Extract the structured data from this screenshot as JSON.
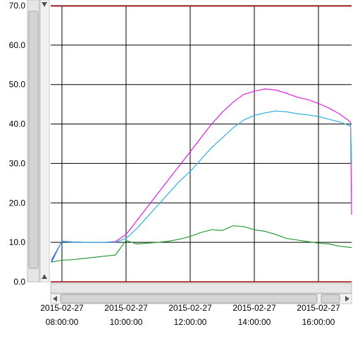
{
  "chart_data": {
    "type": "line",
    "x": [
      "2015-02-27 07:40:00",
      "2015-02-27 08:00:00",
      "2015-02-27 08:20:00",
      "2015-02-27 08:40:00",
      "2015-02-27 09:00:00",
      "2015-02-27 09:20:00",
      "2015-02-27 09:40:00",
      "2015-02-27 10:00:00",
      "2015-02-27 10:20:00",
      "2015-02-27 10:40:00",
      "2015-02-27 11:00:00",
      "2015-02-27 11:20:00",
      "2015-02-27 11:40:00",
      "2015-02-27 12:00:00",
      "2015-02-27 12:20:00",
      "2015-02-27 12:40:00",
      "2015-02-27 13:00:00",
      "2015-02-27 13:20:00",
      "2015-02-27 13:40:00",
      "2015-02-27 14:00:00",
      "2015-02-27 14:20:00",
      "2015-02-27 14:40:00",
      "2015-02-27 15:00:00",
      "2015-02-27 15:20:00",
      "2015-02-27 15:40:00",
      "2015-02-27 16:00:00",
      "2015-02-27 16:20:00",
      "2015-02-27 16:40:00",
      "2015-02-27 17:00:00",
      "2015-02-27 17:02:00"
    ],
    "series": [
      {
        "color": "#2040c0",
        "values": [
          5.0,
          10.3,
          10.1,
          10.0,
          10.0,
          10.0,
          10.0,
          null,
          null,
          null,
          null,
          null,
          null,
          null,
          null,
          null,
          null,
          null,
          null,
          null,
          null,
          null,
          null,
          null,
          null,
          null,
          null,
          null,
          null,
          null
        ]
      },
      {
        "color": "#e020e0",
        "values": [
          5.5,
          10.2,
          10.1,
          10.0,
          10.0,
          10.0,
          10.2,
          12.0,
          15.5,
          19.0,
          22.5,
          26.0,
          29.5,
          33.0,
          36.5,
          40.0,
          43.0,
          45.5,
          47.5,
          48.3,
          48.9,
          48.6,
          47.8,
          46.8,
          46.2,
          45.2,
          44.0,
          42.5,
          40.5,
          17.0
        ]
      },
      {
        "color": "#30b0e0",
        "values": [
          5.5,
          10.2,
          10.1,
          10.0,
          10.0,
          10.0,
          10.0,
          11.0,
          13.5,
          16.5,
          19.5,
          22.5,
          25.5,
          28.0,
          31.0,
          34.0,
          36.5,
          39.0,
          41.0,
          42.2,
          42.8,
          43.3,
          43.1,
          42.6,
          42.3,
          41.9,
          41.2,
          40.5,
          39.5,
          30.0
        ]
      },
      {
        "color": "#2a9a3a",
        "values": [
          5.0,
          5.5,
          5.6,
          5.9,
          6.2,
          6.5,
          6.8,
          10.5,
          9.6,
          9.8,
          10.0,
          10.3,
          10.8,
          11.5,
          12.5,
          13.2,
          13.0,
          14.2,
          14.0,
          13.2,
          12.8,
          12.0,
          11.0,
          10.6,
          10.2,
          9.8,
          9.6,
          9.0,
          8.7,
          8.7
        ]
      }
    ],
    "xlim": [
      "2015-02-27 07:39:00",
      "2015-02-27 17:02:00"
    ],
    "xticks": [
      "2015-02-27 08:00:00",
      "2015-02-27 10:00:00",
      "2015-02-27 12:00:00",
      "2015-02-27 14:00:00",
      "2015-02-27 16:00:00"
    ],
    "ylim": [
      0,
      70
    ],
    "yticks": [
      {
        "value": 0,
        "label": "0.0"
      },
      {
        "value": 10,
        "label": "10.0"
      },
      {
        "value": 20,
        "label": "20.0"
      },
      {
        "value": 30,
        "label": "30.0"
      },
      {
        "value": 40,
        "label": "40.0"
      },
      {
        "value": 50,
        "label": "50.0"
      },
      {
        "value": 60,
        "label": "60.0"
      },
      {
        "value": 70,
        "label": "70.0"
      }
    ],
    "grid": true
  }
}
